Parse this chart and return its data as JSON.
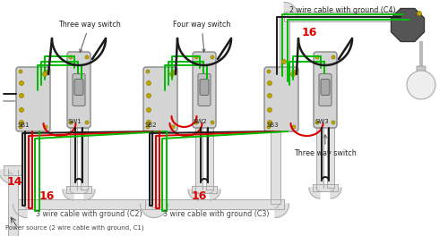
{
  "bg": "#ffffff",
  "box_fill": "#d8d8d8",
  "box_edge": "#999999",
  "switch_fill": "#e0e0e0",
  "switch_edge": "#888888",
  "toggle_fill": "#b0b0b0",
  "conduit_fill": "#e0e0e0",
  "conduit_edge": "#bbbbbb",
  "wire_black": "#1a1a1a",
  "wire_red": "#dd0000",
  "wire_green": "#00bb00",
  "wire_gray": "#aaaaaa",
  "gold": "#c8a000",
  "label_red": "#dd0000",
  "label_dark": "#222222",
  "label_gray": "#444444",
  "three_way_1": "Three way switch",
  "four_way": "Four way switch",
  "three_way_3": "Three way switch",
  "sb1": "SB1",
  "sw1": "SW1",
  "sb2": "SB2",
  "sw2": "SW2",
  "sb3": "SB3",
  "sw3": "SW3",
  "c1": "Power source (2 wire cable with ground, C1)",
  "c2": "3 wire cable with ground (C2)",
  "c3": "3 wire cable with ground (C3)",
  "c4": "2 wire cable with ground (C4)",
  "n14": "14",
  "n16a": "16",
  "n16b": "16",
  "n16c": "16"
}
